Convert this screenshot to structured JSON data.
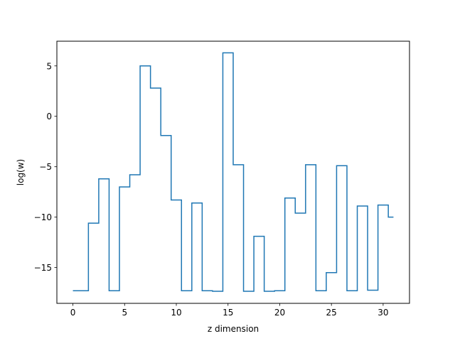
{
  "chart_data": {
    "type": "line",
    "drawstyle": "steps-mid",
    "title": "",
    "xlabel": "z dimension",
    "ylabel": "log(w)",
    "xlim": [
      -1.55,
      32.55
    ],
    "ylim": [
      -18.55,
      7.45
    ],
    "grid": false,
    "xticks": [
      0,
      5,
      10,
      15,
      20,
      25,
      30
    ],
    "xtick_labels": [
      "0",
      "5",
      "10",
      "15",
      "20",
      "25",
      "30"
    ],
    "yticks": [
      5,
      0,
      -5,
      -10,
      -15
    ],
    "ytick_labels": [
      "5",
      "0",
      "−5",
      "−10",
      "−15"
    ],
    "series": [
      {
        "name": "",
        "color": "#1f77b4",
        "x": [
          0,
          1,
          2,
          3,
          4,
          5,
          6,
          7,
          8,
          9,
          10,
          11,
          12,
          13,
          14,
          15,
          16,
          17,
          18,
          19,
          20,
          21,
          22,
          23,
          24,
          25,
          26,
          27,
          28,
          29,
          30,
          31
        ],
        "y": [
          -17.3,
          -17.3,
          -10.6,
          -6.2,
          -17.3,
          -7.0,
          -5.8,
          5.0,
          2.8,
          -1.9,
          -8.3,
          -17.3,
          -8.6,
          -17.3,
          -17.35,
          6.3,
          -4.8,
          -17.35,
          -11.9,
          -17.35,
          -17.3,
          -8.1,
          -9.6,
          -4.8,
          -17.3,
          -15.5,
          -4.9,
          -17.3,
          -8.9,
          -17.25,
          -8.8,
          -10.0
        ]
      }
    ]
  }
}
